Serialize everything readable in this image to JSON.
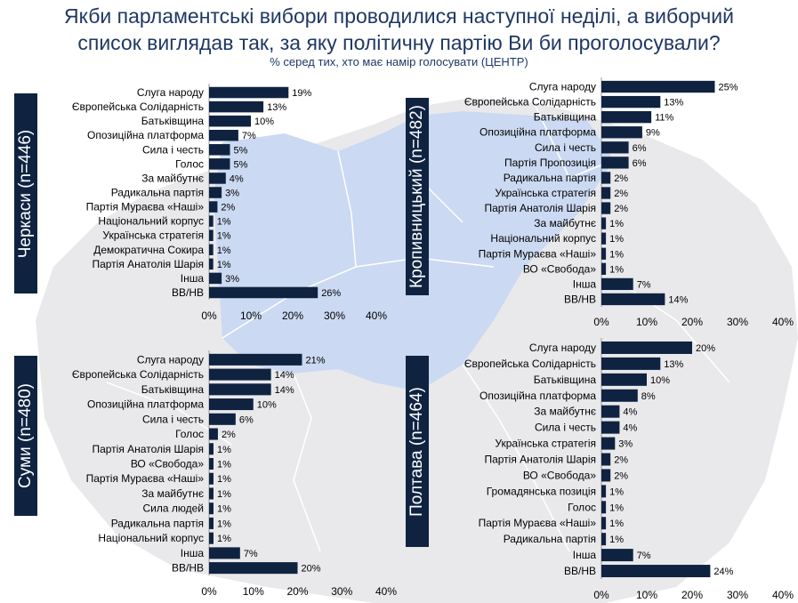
{
  "title_line1": "Якби парламентські вибори проводилися наступної неділі, а виборчий",
  "title_line2": "список виглядав так, за яку політичну партію Ви би проголосували?",
  "subtitle": "% серед тих, хто має намір голосувати (ЦЕНТР)",
  "colors": {
    "bar": "#0f2341",
    "title": "#1f3864",
    "map_highlight": "#cbd9f2",
    "map_base": "#e9e9ec"
  },
  "chart_data": [
    {
      "type": "bar",
      "orientation": "horizontal",
      "region": "Черкаси (n=446)",
      "categories": [
        "Слуга народу",
        "Європейська Солідарність",
        "Батьківщина",
        "Опозиційна платформа",
        "Сила і честь",
        "Голос",
        "За майбутнє",
        "Радикальна партія",
        "Партія Мураєва «Наші»",
        "Національний корпус",
        "Українська стратегія",
        "Демократична Сокира",
        "Партія Анатолія Шарія",
        "Інша",
        "ВВ/НВ"
      ],
      "values": [
        19,
        13,
        10,
        7,
        5,
        5,
        4,
        3,
        2,
        1,
        1,
        1,
        1,
        3,
        26
      ],
      "value_labels": [
        "19%",
        "13%",
        "10%",
        "7%",
        "5%",
        "5%",
        "4%",
        "3%",
        "2%",
        "1%",
        "1%",
        "1%",
        "1%",
        "3%",
        "26%"
      ],
      "xlim": [
        0,
        40
      ],
      "xticks": [
        "0%",
        "10%",
        "20%",
        "30%",
        "40%"
      ]
    },
    {
      "type": "bar",
      "orientation": "horizontal",
      "region": "Кропивницький (n=482)",
      "categories": [
        "Слуга народу",
        "Європейська Солідарність",
        "Батьківщина",
        "Опозиційна платформа",
        "Сила і честь",
        "Партія Пропозиція",
        "Радикальна партія",
        "Українська стратегія",
        "Партія Анатолія Шарія",
        "За майбутнє",
        "Національний корпус",
        "Партія Мураєва «Наші»",
        "ВО «Свобода»",
        "Інша",
        "ВВ/НВ"
      ],
      "values": [
        25,
        13,
        11,
        9,
        6,
        6,
        2,
        2,
        2,
        1,
        1,
        1,
        1,
        7,
        14
      ],
      "value_labels": [
        "25%",
        "13%",
        "11%",
        "9%",
        "6%",
        "6%",
        "2%",
        "2%",
        "2%",
        "1%",
        "1%",
        "1%",
        "1%",
        "7%",
        "14%"
      ],
      "xlim": [
        0,
        40
      ],
      "xticks": [
        "0%",
        "10%",
        "20%",
        "30%",
        "40%"
      ]
    },
    {
      "type": "bar",
      "orientation": "horizontal",
      "region": "Суми (n=480)",
      "categories": [
        "Слуга народу",
        "Європейська Солідарність",
        "Батьківщина",
        "Опозиційна платформа",
        "Сила і честь",
        "Голос",
        "Партія Анатолія Шарія",
        "ВО «Свобода»",
        "Партія Мураєва «Наші»",
        "За майбутнє",
        "Сила людей",
        "Радикальна партія",
        "Національний корпус",
        "Інша",
        "ВВ/НВ"
      ],
      "values": [
        21,
        14,
        14,
        10,
        6,
        2,
        1,
        1,
        1,
        1,
        1,
        1,
        1,
        7,
        20
      ],
      "value_labels": [
        "21%",
        "14%",
        "14%",
        "10%",
        "6%",
        "2%",
        "1%",
        "1%",
        "1%",
        "1%",
        "1%",
        "1%",
        "1%",
        "7%",
        "20%"
      ],
      "xlim": [
        0,
        40
      ],
      "xticks": [
        "0%",
        "10%",
        "20%",
        "30%",
        "40%"
      ]
    },
    {
      "type": "bar",
      "orientation": "horizontal",
      "region": "Полтава (n=464)",
      "categories": [
        "Слуга народу",
        "Європейська Солідарність",
        "Батьківщина",
        "Опозиційна платформа",
        "За майбутнє",
        "Сила і честь",
        "Українська стратегія",
        "Партія Анатолія Шарія",
        "ВО «Свобода»",
        "Громадянська позиція",
        "Голос",
        "Партія Мураєва «Наші»",
        "Радикальна партія",
        "Інша",
        "ВВ/НВ"
      ],
      "values": [
        20,
        13,
        10,
        8,
        4,
        4,
        3,
        2,
        2,
        1,
        1,
        1,
        1,
        7,
        24
      ],
      "value_labels": [
        "20%",
        "13%",
        "10%",
        "8%",
        "4%",
        "4%",
        "3%",
        "2%",
        "2%",
        "1%",
        "1%",
        "1%",
        "1%",
        "7%",
        "24%"
      ],
      "xlim": [
        0,
        40
      ],
      "xticks": [
        "0%",
        "10%",
        "20%",
        "30%",
        "40%"
      ]
    }
  ]
}
